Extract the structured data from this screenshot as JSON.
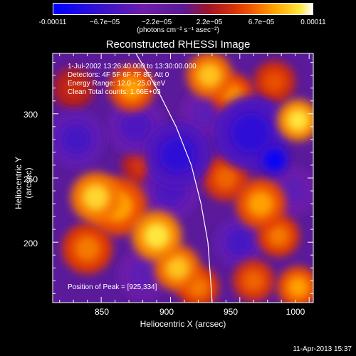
{
  "colorbar": {
    "ticks": [
      "-0.00011",
      "−6.7e−05",
      "−2.2e−05",
      "2.2e−05",
      "6.7e−05",
      "0.00011"
    ],
    "tick_values": [
      -0.00011,
      -6.7e-05,
      -2.2e-05,
      2.2e-05,
      6.7e-05,
      0.00011
    ],
    "unit": "(photons cm⁻² s⁻¹ asec⁻²)",
    "range": [
      -0.00011,
      0.00011
    ]
  },
  "annotations": {
    "date": "1-Jul-2002 13:26:40.000 to 13:30:00.000",
    "detectors": "Detectors: 4F 5F 6F 7F 8F, Att 0",
    "energy": "Energy Range: 12.0 - 25.0 keV",
    "clean": "Clean      Total counts: 1.66E+03",
    "peak": "Position of Peak = [925,334]"
  },
  "timestamp": "11-Apr-2013 15:37",
  "chart_data": {
    "type": "heatmap",
    "title": "Reconstructed RHESSI Image",
    "xlabel": "Heliocentric X (arcsec)",
    "ylabel": "Heliocentric Y (arcsec)",
    "xlim": [
      815,
      1003
    ],
    "ylim": [
      153,
      347
    ],
    "xticks": [
      "850",
      "900",
      "950",
      "1000"
    ],
    "xtick_values": [
      850,
      900,
      950,
      1000
    ],
    "yticks": [
      "200",
      "250",
      "300"
    ],
    "ytick_values": [
      200,
      250,
      300
    ],
    "limb_curve": [
      [
        875,
        347
      ],
      [
        890,
        320
      ],
      [
        904,
        290
      ],
      [
        915,
        260
      ],
      [
        922,
        230
      ],
      [
        927,
        200
      ],
      [
        929,
        170
      ],
      [
        930,
        153
      ]
    ],
    "blobs": [
      {
        "x": 975,
        "y": 264,
        "v": -1.0,
        "r": 7
      },
      {
        "x": 958,
        "y": 285,
        "v": -0.7,
        "r": 18
      },
      {
        "x": 905,
        "y": 268,
        "v": -0.7,
        "r": 16
      },
      {
        "x": 900,
        "y": 240,
        "v": -0.5,
        "r": 14
      },
      {
        "x": 832,
        "y": 280,
        "v": -0.55,
        "r": 14
      },
      {
        "x": 875,
        "y": 290,
        "v": -0.5,
        "r": 14
      },
      {
        "x": 950,
        "y": 200,
        "v": -0.55,
        "r": 12
      },
      {
        "x": 988,
        "y": 240,
        "v": -0.4,
        "r": 12
      },
      {
        "x": 925,
        "y": 300,
        "v": -0.4,
        "r": 12
      },
      {
        "x": 880,
        "y": 175,
        "v": -0.4,
        "r": 12
      },
      {
        "x": 846,
        "y": 235,
        "v": 0.85,
        "r": 12
      },
      {
        "x": 862,
        "y": 228,
        "v": 0.7,
        "r": 14
      },
      {
        "x": 890,
        "y": 205,
        "v": 0.9,
        "r": 12
      },
      {
        "x": 840,
        "y": 195,
        "v": 0.6,
        "r": 12
      },
      {
        "x": 905,
        "y": 180,
        "v": 0.8,
        "r": 11
      },
      {
        "x": 920,
        "y": 165,
        "v": 0.6,
        "r": 10
      },
      {
        "x": 872,
        "y": 320,
        "v": 0.7,
        "r": 11
      },
      {
        "x": 928,
        "y": 330,
        "v": 0.8,
        "r": 11
      },
      {
        "x": 945,
        "y": 315,
        "v": 0.65,
        "r": 10
      },
      {
        "x": 992,
        "y": 295,
        "v": 0.9,
        "r": 10
      },
      {
        "x": 975,
        "y": 325,
        "v": 0.5,
        "r": 10
      },
      {
        "x": 940,
        "y": 250,
        "v": 0.55,
        "r": 11
      },
      {
        "x": 965,
        "y": 230,
        "v": 0.7,
        "r": 12
      },
      {
        "x": 978,
        "y": 205,
        "v": 0.6,
        "r": 10
      },
      {
        "x": 992,
        "y": 165,
        "v": 0.7,
        "r": 10
      },
      {
        "x": 960,
        "y": 170,
        "v": 0.55,
        "r": 10
      },
      {
        "x": 880,
        "y": 260,
        "v": 0.4,
        "r": 10
      },
      {
        "x": 830,
        "y": 320,
        "v": 0.35,
        "r": 10
      }
    ]
  }
}
